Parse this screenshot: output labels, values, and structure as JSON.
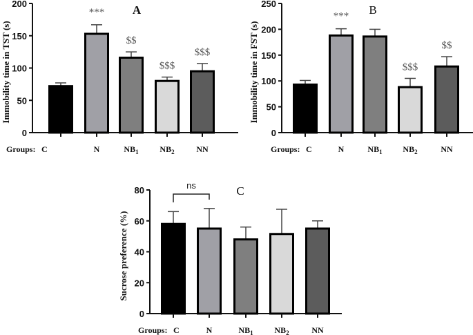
{
  "chart_data": [
    {
      "type": "bar",
      "title": "A",
      "ylabel": "Immobility time in TST (s)",
      "xlabel_prefix": "Groups:",
      "categories": [
        "C",
        "N",
        "NB1",
        "NB2",
        "NN"
      ],
      "values": [
        72,
        153,
        116,
        80,
        95
      ],
      "error_upper": [
        77,
        167,
        125,
        86,
        107
      ],
      "annotations": [
        "",
        "***",
        "$$",
        "$$$",
        "$$$"
      ],
      "ylim": [
        0,
        200
      ],
      "yticks": [
        0,
        50,
        100,
        150,
        200
      ],
      "colors": [
        "#000000",
        "#a0a0a6",
        "#7f7f7f",
        "#d9d9d9",
        "#5c5c5c"
      ]
    },
    {
      "type": "bar",
      "title": "B",
      "ylabel": "Immobility time in FST (s)",
      "xlabel_prefix": "Groups:",
      "categories": [
        "C",
        "N",
        "NB1",
        "NB2",
        "NN"
      ],
      "values": [
        93,
        188,
        186,
        88,
        128
      ],
      "error_upper": [
        101,
        201,
        200,
        105,
        147
      ],
      "annotations": [
        "",
        "***",
        "",
        "$$$",
        "$$"
      ],
      "ylim": [
        0,
        250
      ],
      "yticks": [
        0,
        50,
        100,
        150,
        200,
        250
      ],
      "colors": [
        "#000000",
        "#a0a0a6",
        "#7f7f7f",
        "#d9d9d9",
        "#5c5c5c"
      ]
    },
    {
      "type": "bar",
      "title": "C",
      "ylabel": "Sucrose preference (%)",
      "xlabel_prefix": "Groups:",
      "categories": [
        "C",
        "N",
        "NB1",
        "NB2",
        "NN"
      ],
      "values": [
        58,
        55,
        48,
        51.5,
        55
      ],
      "error_upper": [
        66,
        68,
        56,
        67.5,
        60
      ],
      "annotations": [
        "",
        "",
        "",
        "",
        ""
      ],
      "bracket": {
        "from": "C",
        "to": "N",
        "label": "ns"
      },
      "ylim": [
        0,
        80
      ],
      "yticks": [
        0,
        20,
        40,
        60,
        80
      ],
      "colors": [
        "#000000",
        "#a0a0a6",
        "#7f7f7f",
        "#d9d9d9",
        "#5c5c5c"
      ]
    }
  ]
}
